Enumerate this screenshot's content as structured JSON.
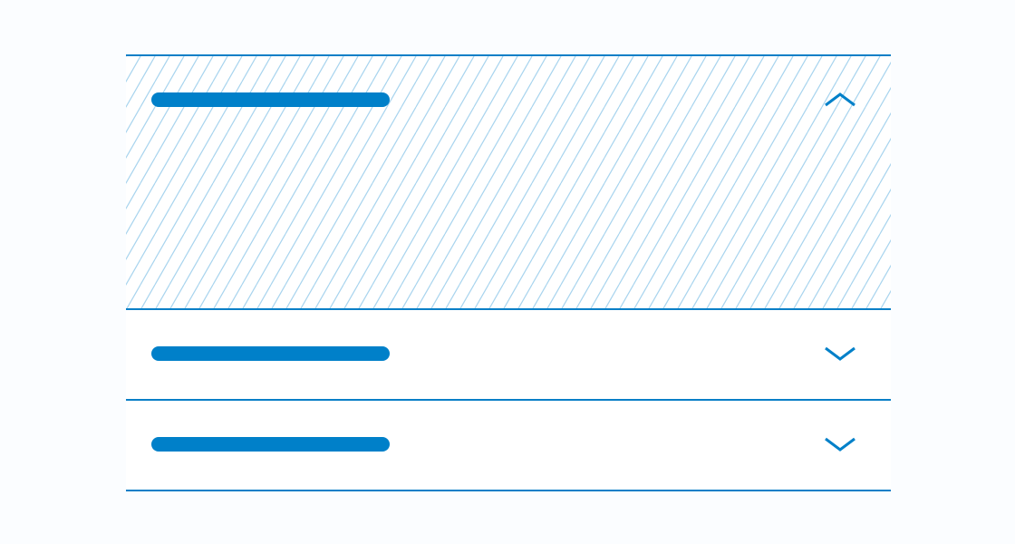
{
  "colors": {
    "accent": "#0080c9",
    "border": "#0a7fc7",
    "stripe": "#a8d4ee",
    "background": "#fbfdff",
    "panel": "#ffffff"
  },
  "accordion": {
    "items": [
      {
        "state": "expanded",
        "icon": "chevron-up-icon"
      },
      {
        "state": "collapsed",
        "icon": "chevron-down-icon"
      },
      {
        "state": "collapsed",
        "icon": "chevron-down-icon"
      }
    ]
  }
}
